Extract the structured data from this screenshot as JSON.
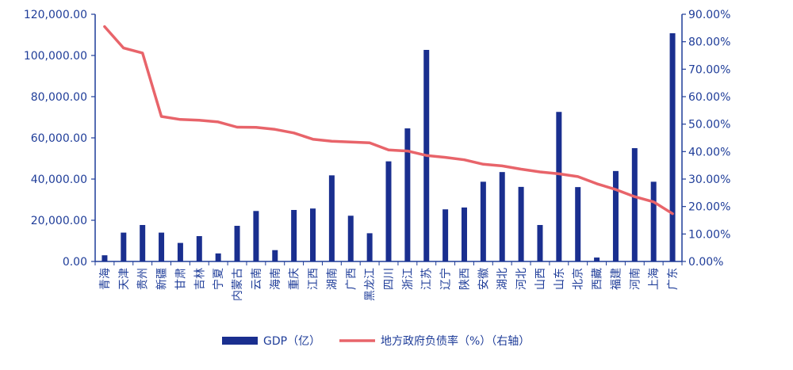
{
  "chart_data": {
    "type": "bar",
    "title": "",
    "xlabel": "",
    "ylabel": "",
    "categories": [
      "青海",
      "天津",
      "贵州",
      "新疆",
      "甘肃",
      "吉林",
      "宁夏",
      "内蒙古",
      "云南",
      "海南",
      "重庆",
      "江西",
      "湖南",
      "广西",
      "黑龙江",
      "四川",
      "浙江",
      "江苏",
      "辽宁",
      "陕西",
      "安徽",
      "湖北",
      "河北",
      "山西",
      "山东",
      "北京",
      "西藏",
      "福建",
      "河南",
      "上海",
      "广东"
    ],
    "ylim": [
      0,
      120000
    ],
    "y_ticks": [
      "0.00",
      "20,000.00",
      "40,000.00",
      "60,000.00",
      "80,000.00",
      "100,000.00",
      "120,000.00"
    ],
    "y2lim": [
      0,
      90
    ],
    "y2_ticks": [
      "0.00%",
      "10.00%",
      "20.00%",
      "30.00%",
      "40.00%",
      "50.00%",
      "60.00%",
      "70.00%",
      "80.00%",
      "90.00%"
    ],
    "series": [
      {
        "name": "GDP（亿）",
        "type": "bar",
        "axis": "left",
        "color": "#1a2f8f",
        "values": [
          3000,
          14000,
          17700,
          14000,
          9000,
          12300,
          3900,
          17300,
          24500,
          5500,
          25000,
          25700,
          41800,
          22200,
          13700,
          48600,
          64600,
          102700,
          25300,
          26200,
          38700,
          43400,
          36200,
          17700,
          72600,
          36100,
          1900,
          43900,
          55000,
          38700,
          110800
        ]
      },
      {
        "name": "地方政府负债率（%）（右轴）",
        "type": "line",
        "axis": "right",
        "color": "#e8646a",
        "values": [
          85.5,
          77.7,
          75.9,
          52.8,
          51.7,
          51.4,
          50.8,
          48.9,
          48.8,
          48.1,
          46.8,
          44.5,
          43.8,
          43.5,
          43.2,
          40.6,
          40.2,
          38.6,
          37.9,
          37.0,
          35.4,
          34.8,
          33.6,
          32.6,
          31.9,
          30.9,
          28.3,
          26.2,
          23.6,
          21.7,
          17.4
        ]
      }
    ],
    "legend_position": "bottom",
    "grid": false
  }
}
